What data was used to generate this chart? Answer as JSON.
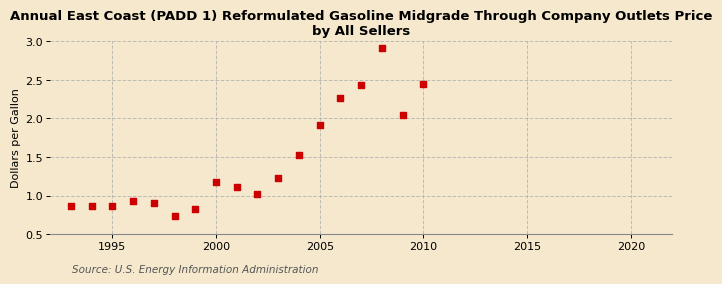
{
  "title": "Annual East Coast (PADD 1) Reformulated Gasoline Midgrade Through Company Outlets Price\nby All Sellers",
  "ylabel": "Dollars per Gallon",
  "source": "Source: U.S. Energy Information Administration",
  "background_color": "#f5e8cc",
  "plot_background_color": "#f5e8cc",
  "marker_color": "#cc0000",
  "years": [
    1993,
    1994,
    1995,
    1996,
    1997,
    1998,
    1999,
    2000,
    2001,
    2002,
    2003,
    2004,
    2005,
    2006,
    2007,
    2008,
    2009,
    2010
  ],
  "values": [
    0.86,
    0.87,
    0.87,
    0.93,
    0.91,
    0.73,
    0.83,
    1.18,
    1.11,
    1.02,
    1.23,
    1.53,
    1.92,
    2.27,
    2.43,
    2.91,
    2.04,
    2.44
  ],
  "xlim": [
    1992,
    2022
  ],
  "ylim": [
    0.5,
    3.0
  ],
  "xticks": [
    1995,
    2000,
    2005,
    2010,
    2015,
    2020
  ],
  "yticks": [
    0.5,
    1.0,
    1.5,
    2.0,
    2.5,
    3.0
  ],
  "grid_color": "#b0b0b0",
  "title_fontsize": 9.5,
  "axis_fontsize": 8,
  "source_fontsize": 7.5,
  "marker_size": 15
}
